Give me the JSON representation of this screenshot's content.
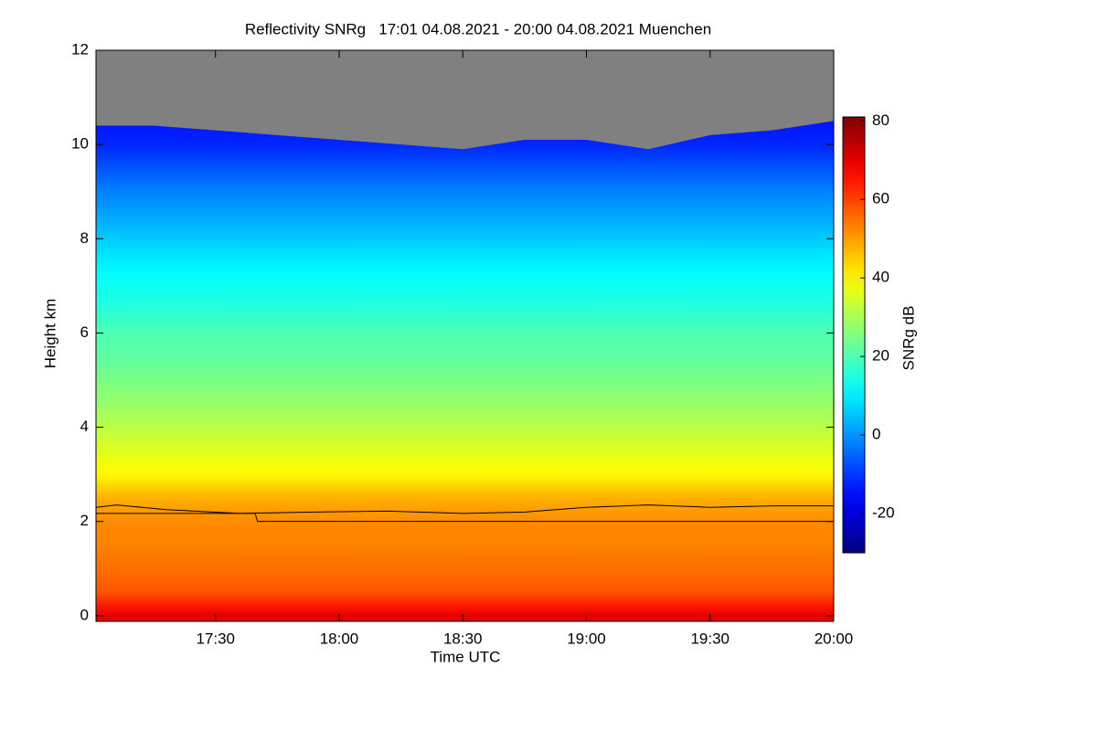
{
  "chart_data": {
    "type": "heatmap",
    "title": "Reflectivity SNRg   17:01 04.08.2021 - 20:00 04.08.2021 Muenchen",
    "xlabel": "Time UTC",
    "ylabel": "Height km",
    "colorbar_label": "SNRg dB",
    "colormap": "jet",
    "no_data_color": "#808080",
    "xlim": [
      17.0167,
      20.0
    ],
    "xticks": [
      {
        "value": 17.5,
        "label": "17:30"
      },
      {
        "value": 18.0,
        "label": "18:00"
      },
      {
        "value": 18.5,
        "label": "18:30"
      },
      {
        "value": 19.0,
        "label": "19:00"
      },
      {
        "value": 19.5,
        "label": "19:30"
      },
      {
        "value": 20.0,
        "label": "20:00"
      }
    ],
    "ylim": [
      -0.12,
      12.0
    ],
    "yticks": [
      0,
      2,
      4,
      6,
      8,
      10,
      12
    ],
    "clim": [
      -30,
      81
    ],
    "cticks": [
      -20,
      0,
      20,
      40,
      60,
      80
    ],
    "heights": [
      0,
      0.5,
      1.0,
      1.5,
      2.0,
      2.5,
      3.0,
      3.5,
      4.0,
      4.5,
      5.0,
      5.5,
      6.0,
      6.5,
      7.0,
      7.5,
      8.0,
      8.5,
      9.0,
      9.5,
      10.0,
      10.5
    ],
    "values": [
      70,
      58,
      55,
      53,
      52,
      48,
      40,
      36,
      32,
      28,
      25,
      22,
      20,
      16,
      13,
      10,
      6,
      2,
      -2,
      -7,
      -12,
      -14
    ],
    "echo_top": {
      "x": [
        17.0167,
        17.25,
        17.5,
        17.75,
        18.0,
        18.25,
        18.5,
        18.75,
        19.0,
        19.25,
        19.5,
        19.75,
        20.0
      ],
      "values": [
        10.4,
        10.4,
        10.3,
        10.2,
        10.1,
        10.0,
        9.9,
        10.1,
        10.1,
        9.9,
        10.2,
        10.3,
        10.5
      ]
    },
    "lines": [
      {
        "color": "#000000",
        "x": [
          17.0167,
          17.1,
          17.3,
          17.6,
          17.9,
          18.2,
          18.5,
          18.75,
          19.0,
          19.25,
          19.5,
          19.75,
          20.0
        ],
        "values": [
          2.3,
          2.35,
          2.25,
          2.17,
          2.2,
          2.22,
          2.17,
          2.2,
          2.3,
          2.35,
          2.3,
          2.33,
          2.33
        ]
      },
      {
        "color": "#000000",
        "x": [
          17.0167,
          17.66,
          17.67,
          20.0
        ],
        "values": [
          2.17,
          2.17,
          2.0,
          2.0
        ]
      }
    ]
  }
}
